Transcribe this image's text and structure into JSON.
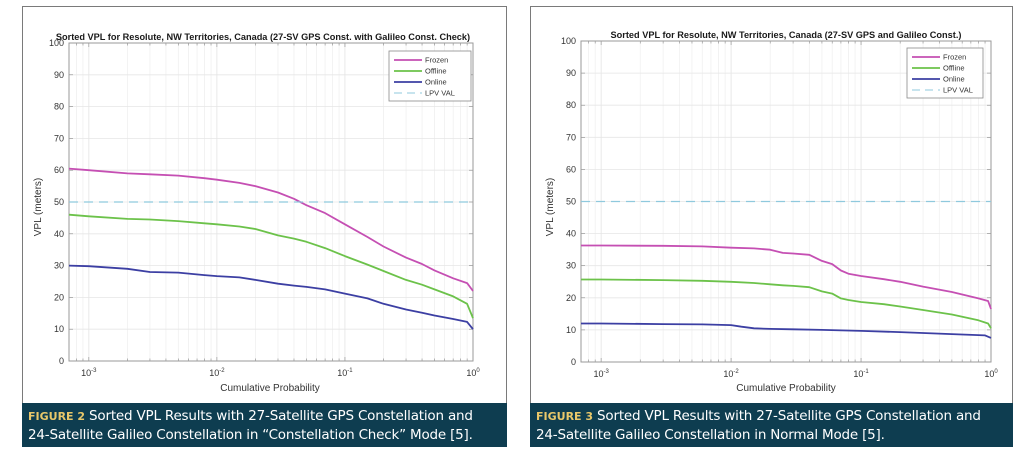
{
  "chart_data": [
    {
      "type": "line",
      "title": "Sorted VPL for Resolute, NW Territories, Canada (27-SV GPS Const. with Galileo Const. Check)",
      "xlabel": "Cumulative Probability",
      "ylabel": "VPL (meters)",
      "xscale": "log",
      "xlim": [
        0.0007,
        1
      ],
      "ylim": [
        0,
        100
      ],
      "xticks": [
        0.001,
        0.01,
        0.1,
        1
      ],
      "xtick_labels": [
        {
          "base": "10",
          "exp": "-3"
        },
        {
          "base": "10",
          "exp": "-2"
        },
        {
          "base": "10",
          "exp": "-1"
        },
        {
          "base": "10",
          "exp": "0"
        }
      ],
      "yticks": [
        0,
        10,
        20,
        30,
        40,
        50,
        60,
        70,
        80,
        90,
        100
      ],
      "grid": true,
      "legend_position": "top-right",
      "series": [
        {
          "name": "Frozen",
          "color": "#c54fb3",
          "style": "solid",
          "x": [
            0.0007,
            0.001,
            0.002,
            0.003,
            0.005,
            0.008,
            0.01,
            0.015,
            0.02,
            0.03,
            0.04,
            0.05,
            0.07,
            0.1,
            0.15,
            0.2,
            0.3,
            0.4,
            0.5,
            0.7,
            0.9,
            1.0
          ],
          "y": [
            60.5,
            60,
            59,
            58.7,
            58.3,
            57.5,
            57,
            56,
            55,
            53,
            51,
            49,
            46.5,
            43,
            39,
            36,
            32.5,
            30.5,
            28.5,
            26,
            24.5,
            22
          ]
        },
        {
          "name": "Offline",
          "color": "#6cc24a",
          "style": "solid",
          "x": [
            0.0007,
            0.001,
            0.002,
            0.003,
            0.005,
            0.008,
            0.01,
            0.015,
            0.02,
            0.03,
            0.04,
            0.05,
            0.07,
            0.1,
            0.15,
            0.2,
            0.3,
            0.4,
            0.5,
            0.7,
            0.9,
            1.0
          ],
          "y": [
            46,
            45.5,
            44.7,
            44.5,
            44,
            43.3,
            43,
            42.3,
            41.5,
            39.5,
            38.5,
            37.5,
            35.5,
            33,
            30.3,
            28.3,
            25.5,
            24,
            22.5,
            20.3,
            18,
            13.5
          ]
        },
        {
          "name": "Online",
          "color": "#3c3fa3",
          "style": "solid",
          "x": [
            0.0007,
            0.001,
            0.002,
            0.003,
            0.005,
            0.008,
            0.01,
            0.015,
            0.02,
            0.03,
            0.04,
            0.05,
            0.07,
            0.1,
            0.15,
            0.2,
            0.3,
            0.4,
            0.5,
            0.7,
            0.9,
            1.0
          ],
          "y": [
            30,
            29.8,
            29,
            28,
            27.8,
            27,
            26.7,
            26.3,
            25.5,
            24.3,
            23.7,
            23.3,
            22.5,
            21.2,
            19.7,
            18,
            16.2,
            15.2,
            14.3,
            13.2,
            12.3,
            10
          ]
        },
        {
          "name": "LPV VAL",
          "color": "#8fc9dd",
          "style": "dashed",
          "x": [
            0.0007,
            1.0
          ],
          "y": [
            50,
            50
          ]
        }
      ]
    },
    {
      "type": "line",
      "title": "Sorted VPL for Resolute, NW Territories, Canada (27-SV GPS and Galileo Const.)",
      "xlabel": "Cumulative Probability",
      "ylabel": "VPL (meters)",
      "xscale": "log",
      "xlim": [
        0.0007,
        1
      ],
      "ylim": [
        0,
        100
      ],
      "xticks": [
        0.001,
        0.01,
        0.1,
        1
      ],
      "xtick_labels": [
        {
          "base": "10",
          "exp": "-3"
        },
        {
          "base": "10",
          "exp": "-2"
        },
        {
          "base": "10",
          "exp": "-1"
        },
        {
          "base": "10",
          "exp": "0"
        }
      ],
      "yticks": [
        0,
        10,
        20,
        30,
        40,
        50,
        60,
        70,
        80,
        90,
        100
      ],
      "grid": true,
      "legend_position": "top-right",
      "series": [
        {
          "name": "Frozen",
          "color": "#c54fb3",
          "style": "solid",
          "x": [
            0.0007,
            0.001,
            0.003,
            0.006,
            0.01,
            0.015,
            0.02,
            0.025,
            0.03,
            0.04,
            0.05,
            0.06,
            0.07,
            0.08,
            0.1,
            0.15,
            0.2,
            0.3,
            0.5,
            0.8,
            0.95,
            1.0
          ],
          "y": [
            36.3,
            36.3,
            36.2,
            36,
            35.6,
            35.4,
            35,
            34,
            33.8,
            33.4,
            31.5,
            30.5,
            28.5,
            27.5,
            26.8,
            25.8,
            25,
            23.5,
            21.8,
            19.8,
            19,
            16.5
          ]
        },
        {
          "name": "Offline",
          "color": "#6cc24a",
          "style": "solid",
          "x": [
            0.0007,
            0.001,
            0.003,
            0.006,
            0.01,
            0.015,
            0.02,
            0.025,
            0.03,
            0.04,
            0.05,
            0.06,
            0.07,
            0.08,
            0.1,
            0.15,
            0.2,
            0.3,
            0.5,
            0.8,
            0.95,
            1.0
          ],
          "y": [
            25.7,
            25.7,
            25.5,
            25.3,
            25,
            24.6,
            24.2,
            23.9,
            23.7,
            23.3,
            22,
            21.3,
            19.8,
            19.3,
            18.7,
            18,
            17.3,
            16.2,
            14.8,
            13,
            12,
            10.5
          ]
        },
        {
          "name": "Online",
          "color": "#3c3fa3",
          "style": "solid",
          "x": [
            0.0007,
            0.001,
            0.003,
            0.006,
            0.01,
            0.012,
            0.015,
            0.02,
            0.03,
            0.05,
            0.1,
            0.2,
            0.5,
            0.9,
            1.0
          ],
          "y": [
            12,
            12,
            11.8,
            11.7,
            11.5,
            11,
            10.5,
            10.3,
            10.2,
            10,
            9.7,
            9.3,
            8.7,
            8.3,
            7.5
          ]
        },
        {
          "name": "LPV VAL",
          "color": "#8fc9dd",
          "style": "dashed",
          "x": [
            0.0007,
            1.0
          ],
          "y": [
            50,
            50
          ]
        }
      ]
    }
  ],
  "captions": [
    {
      "figure_label": "FIGURE 2",
      "line1": "Sorted VPL Results with 27-Satellite GPS Constellation and",
      "line2": "24-Satellite Galileo Constellation in “Constellation Check” Mode [5]."
    },
    {
      "figure_label": "FIGURE 3",
      "line1": "Sorted VPL Results with 27-Satellite GPS Constellation and",
      "line2": "24-Satellite Galileo Constellation in Normal Mode [5]."
    }
  ],
  "colors": {
    "caption_bg": "#0e3d50",
    "caption_label": "#e9c86a",
    "frozen": "#c54fb3",
    "offline": "#6cc24a",
    "online": "#3c3fa3",
    "lpv_val": "#8fc9dd"
  }
}
